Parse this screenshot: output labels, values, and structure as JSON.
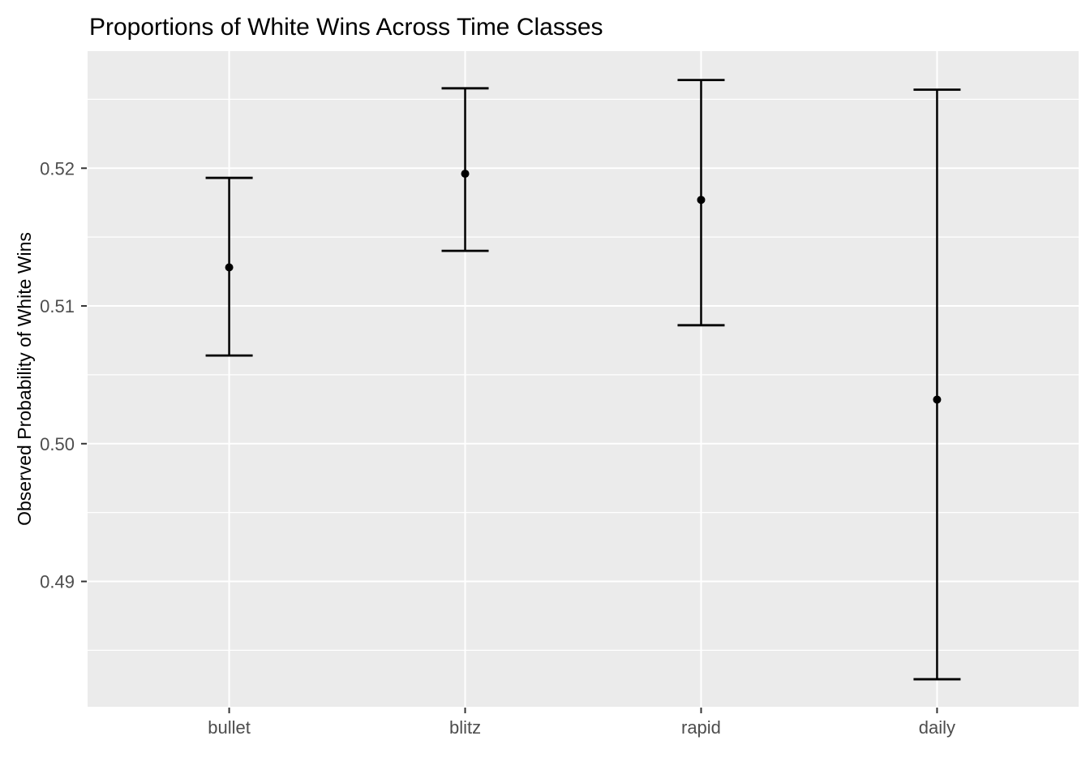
{
  "chart_data": {
    "type": "errorbar",
    "style": "ggplot2",
    "title": "Proportions of White Wins Across Time Classes",
    "xlabel": "",
    "ylabel": "Observed Probability of White Wins",
    "categories": [
      "bullet",
      "blitz",
      "rapid",
      "daily"
    ],
    "estimates": [
      0.5128,
      0.5196,
      0.5177,
      0.5032
    ],
    "lower": [
      0.5064,
      0.514,
      0.5086,
      0.4829
    ],
    "upper": [
      0.5193,
      0.5258,
      0.5264,
      0.5257
    ],
    "ylim": [
      0.4809,
      0.5285
    ],
    "yticks": [
      0.49,
      0.5,
      0.51,
      0.52
    ],
    "ytick_labels": [
      "0.49",
      "0.50",
      "0.51",
      "0.52"
    ],
    "yticks_minor": [
      0.485,
      0.495,
      0.505,
      0.515,
      0.525
    ],
    "grid": "horizontal major+minor, vertical major at category centers",
    "legend": "none",
    "colors": {
      "panel_background": "#EBEBEB",
      "gridline": "#FFFFFF",
      "data": "#000000",
      "tick_label": "#4D4D4D",
      "tick_mark": "#333333",
      "title": "#000000",
      "figure_background": "#FFFFFF"
    }
  }
}
